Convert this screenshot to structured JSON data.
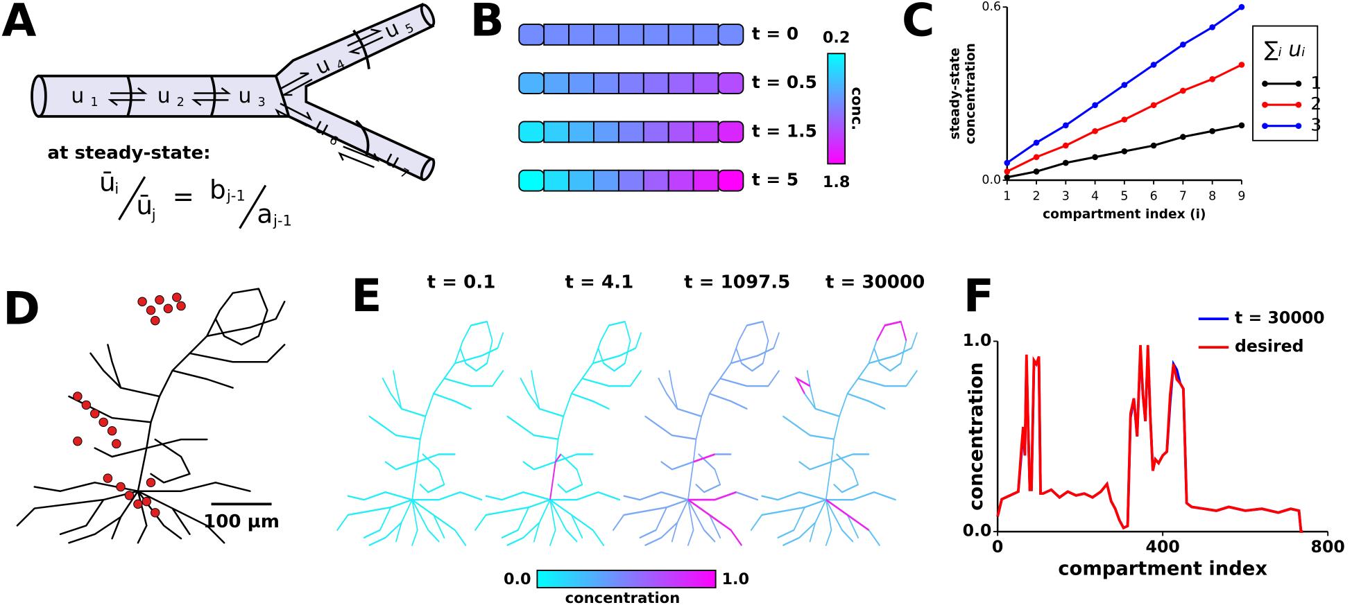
{
  "panel_labels": [
    "A",
    "B",
    "C",
    "D",
    "E",
    "F"
  ],
  "panel_a": {
    "compartments": [
      {
        "name": "u",
        "sub": "1"
      },
      {
        "name": "u",
        "sub": "2"
      },
      {
        "name": "u",
        "sub": "3"
      },
      {
        "name": "u",
        "sub": "4"
      },
      {
        "name": "u",
        "sub": "5"
      },
      {
        "name": "u",
        "sub": "6"
      },
      {
        "name": "u",
        "sub": "7"
      }
    ],
    "caption": "at steady-state:",
    "formula": {
      "lhs_num": "ū",
      "lhs_num_sub": "i",
      "lhs_den": "ū",
      "lhs_den_sub": "j",
      "equals": "=",
      "rhs_num": "b",
      "rhs_num_sub": "j-1",
      "rhs_den": "a",
      "rhs_den_sub": "j-1"
    }
  },
  "panel_b": {
    "times": [
      "t = 0",
      "t = 0.5",
      "t = 1.5",
      "t = 5"
    ],
    "colorbar": {
      "min": "0.2",
      "max": "1.8",
      "label": "conc."
    }
  },
  "panel_d": {
    "scale_bar": "100 µm"
  },
  "panel_e": {
    "times": [
      "t = 0.1",
      "t = 4.1",
      "t = 1097.5",
      "t = 30000"
    ],
    "colorbar": {
      "min": "0.0",
      "max": "1.0",
      "label": "concentration"
    }
  },
  "chart_data": [
    {
      "type": "line",
      "ylabel": [
        "steady-state",
        "concentration"
      ],
      "xlabel": "compartment index (i)",
      "legend_title": "∑ᵢ uᵢ",
      "legend": "outside right",
      "markers": true,
      "x": [
        1,
        2,
        3,
        4,
        5,
        6,
        7,
        8,
        9
      ],
      "series": [
        {
          "name": "1",
          "color": "#000000",
          "values": [
            0.01,
            0.03,
            0.06,
            0.08,
            0.1,
            0.12,
            0.15,
            0.17,
            0.19
          ]
        },
        {
          "name": "2",
          "color": "#ff0000",
          "values": [
            0.03,
            0.08,
            0.12,
            0.17,
            0.21,
            0.26,
            0.31,
            0.35,
            0.4
          ]
        },
        {
          "name": "3",
          "color": "#0000ff",
          "values": [
            0.06,
            0.13,
            0.19,
            0.26,
            0.33,
            0.4,
            0.47,
            0.53,
            0.6
          ]
        }
      ],
      "xlim": [
        1,
        9
      ],
      "xticks": [
        1,
        2,
        3,
        4,
        5,
        6,
        7,
        8,
        9
      ],
      "ylim": [
        0,
        0.6
      ],
      "yticks": [
        {
          "value": 0,
          "label": "0.0"
        },
        0.6
      ]
    },
    {
      "type": "line",
      "xlabel": "compartment index",
      "ylabel": "concentration",
      "legend": "upper right",
      "markers": false,
      "x": [
        0,
        10,
        30,
        50,
        58,
        62,
        66,
        70,
        74,
        78,
        82,
        88,
        94,
        100,
        104,
        110,
        130,
        150,
        170,
        190,
        210,
        230,
        250,
        265,
        275,
        285,
        295,
        305,
        315,
        322,
        330,
        338,
        346,
        352,
        358,
        364,
        370,
        376,
        382,
        390,
        400,
        410,
        418,
        426,
        434,
        442,
        450,
        458,
        470,
        500,
        530,
        560,
        600,
        640,
        680,
        710,
        730,
        735,
        740
      ],
      "series": [
        {
          "name": "t = 30000",
          "color": "#0000ff",
          "values": [
            0.08,
            0.17,
            0.19,
            0.21,
            0.42,
            0.55,
            0.4,
            0.9,
            0.55,
            0.22,
            0.22,
            0.88,
            0.88,
            0.9,
            0.2,
            0.2,
            0.22,
            0.18,
            0.21,
            0.19,
            0.2,
            0.18,
            0.21,
            0.25,
            0.16,
            0.12,
            0.06,
            0.02,
            0.03,
            0.6,
            0.7,
            0.5,
            0.95,
            0.72,
            0.58,
            0.96,
            0.6,
            0.32,
            0.38,
            0.36,
            0.4,
            0.42,
            0.68,
            0.88,
            0.85,
            0.78,
            0.75,
            0.15,
            0.13,
            0.12,
            0.11,
            0.13,
            0.11,
            0.12,
            0.1,
            0.12,
            0.11,
            0.0,
            0.0
          ]
        },
        {
          "name": "desired",
          "color": "#ff0000",
          "values": [
            0.08,
            0.17,
            0.19,
            0.21,
            0.45,
            0.55,
            0.4,
            0.93,
            0.55,
            0.22,
            0.22,
            0.9,
            0.88,
            0.92,
            0.2,
            0.2,
            0.22,
            0.18,
            0.21,
            0.19,
            0.2,
            0.18,
            0.21,
            0.25,
            0.16,
            0.12,
            0.06,
            0.02,
            0.03,
            0.62,
            0.7,
            0.5,
            0.98,
            0.72,
            0.58,
            0.98,
            0.6,
            0.32,
            0.38,
            0.36,
            0.4,
            0.42,
            0.72,
            0.88,
            0.8,
            0.78,
            0.75,
            0.15,
            0.13,
            0.12,
            0.11,
            0.13,
            0.11,
            0.12,
            0.1,
            0.12,
            0.11,
            0.0,
            0.0
          ]
        }
      ],
      "xlim": [
        0,
        800
      ],
      "xticks": [
        0,
        400,
        800
      ],
      "ylim": [
        0,
        1
      ],
      "yticks": [
        {
          "value": 0,
          "label": "0.0"
        },
        {
          "value": 1,
          "label": "1.0"
        }
      ]
    }
  ]
}
